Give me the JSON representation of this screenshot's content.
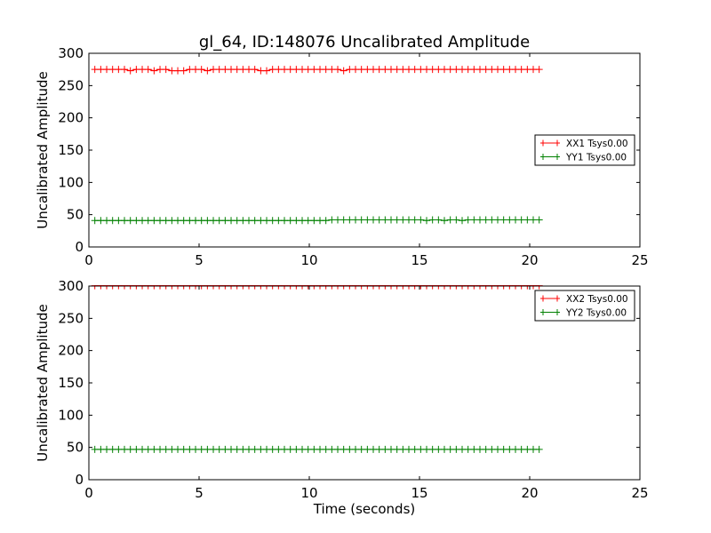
{
  "chart_data": {
    "type": "line",
    "title": "gl_64, ID:148076 Uncalibrated Amplitude",
    "x_step": 0.2688,
    "x_start": 0.27,
    "subplots": [
      {
        "xlabel": "",
        "ylabel": "Uncalibrated Amplitude",
        "xlim": [
          0,
          25
        ],
        "ylim": [
          0,
          300
        ],
        "xticks": [
          "0",
          "5",
          "10",
          "15",
          "20",
          "25"
        ],
        "yticks": [
          "0",
          "50",
          "100",
          "150",
          "200",
          "250",
          "300"
        ],
        "legend_position": "center-right",
        "series": [
          {
            "name": "XX1 Tsys0.00",
            "color": "#ff0000",
            "values": [
              275,
              275,
              275,
              275,
              275,
              275,
              273,
              275,
              275,
              275,
              273,
              275,
              275,
              273,
              273,
              273,
              275,
              275,
              275,
              273,
              275,
              275,
              275,
              275,
              275,
              275,
              275,
              275,
              273,
              273,
              275,
              275,
              275,
              275,
              275,
              275,
              275,
              275,
              275,
              275,
              275,
              275,
              273,
              275,
              275,
              275,
              275,
              275,
              275,
              275,
              275,
              275,
              275,
              275,
              275,
              275,
              275,
              275,
              275,
              275,
              275,
              275,
              275,
              275,
              275,
              275,
              275,
              275,
              275,
              275,
              275,
              275,
              275,
              275,
              275,
              275
            ]
          },
          {
            "name": "YY1 Tsys0.00",
            "color": "#008000",
            "values": [
              41,
              41,
              41,
              41,
              41,
              41,
              41,
              41,
              41,
              41,
              41,
              41,
              41,
              41,
              41,
              41,
              41,
              41,
              41,
              41,
              41,
              41,
              41,
              41,
              41,
              41,
              41,
              41,
              41,
              41,
              41,
              41,
              41,
              41,
              41,
              41,
              41,
              41,
              41,
              41,
              42,
              42,
              42,
              42,
              42,
              42,
              42,
              42,
              42,
              42,
              42,
              42,
              42,
              42,
              42,
              42,
              41,
              42,
              42,
              41,
              42,
              42,
              41,
              42,
              42,
              42,
              42,
              42,
              42,
              42,
              42,
              42,
              42,
              42,
              42,
              42
            ]
          }
        ]
      },
      {
        "xlabel": "Time (seconds)",
        "ylabel": "Uncalibrated Amplitude",
        "xlim": [
          0,
          25
        ],
        "ylim": [
          0,
          300
        ],
        "xticks": [
          "0",
          "5",
          "10",
          "15",
          "20",
          "25"
        ],
        "yticks": [
          "0",
          "50",
          "100",
          "150",
          "200",
          "250",
          "300"
        ],
        "legend_position": "upper-right",
        "series": [
          {
            "name": "XX2 Tsys0.00",
            "color": "#ff0000",
            "values": [
              300.5,
              300.5,
              300.5,
              300.5,
              300.5,
              300.5,
              300.5,
              300.5,
              300.5,
              300.5,
              300.5,
              300.5,
              300.5,
              300.5,
              300.5,
              300.5,
              300.5,
              300.5,
              300.5,
              300.5,
              300.5,
              300.5,
              300.5,
              300.5,
              300.5,
              300.5,
              300.5,
              300.5,
              300.5,
              300.5,
              300.5,
              300.5,
              300.5,
              300.5,
              300.5,
              300.5,
              300.5,
              300.5,
              300.5,
              300.5,
              300.5,
              300.5,
              300.5,
              300.5,
              300.5,
              300.5,
              300.5,
              300.5,
              300.5,
              300.5,
              300.5,
              300.5,
              300.5,
              300.5,
              300.5,
              300.5,
              300.5,
              300.5,
              300.5,
              300.5,
              300.5,
              300.5,
              300.5,
              300.5,
              300.5,
              300.5,
              300.5,
              300.5,
              300.5,
              300.5,
              300.5,
              300.5,
              300.5,
              300.5,
              300.5,
              300.5
            ]
          },
          {
            "name": "YY2 Tsys0.00",
            "color": "#008000",
            "values": [
              47,
              47,
              47,
              47,
              47,
              47,
              47,
              47,
              47,
              47,
              47,
              47,
              47,
              47,
              47,
              47,
              47,
              47,
              47,
              47,
              47,
              47,
              47,
              47,
              47,
              47,
              47,
              47,
              47,
              47,
              47,
              47,
              47,
              47,
              47,
              47,
              47,
              47,
              47,
              47,
              47,
              47,
              47,
              47,
              47,
              47,
              47,
              47,
              47,
              47,
              47,
              47,
              47,
              47,
              47,
              47,
              47,
              47,
              47,
              47,
              47,
              47,
              47,
              47,
              47,
              47,
              47,
              47,
              47,
              47,
              47,
              47,
              47,
              47,
              47,
              47
            ]
          }
        ]
      }
    ]
  }
}
